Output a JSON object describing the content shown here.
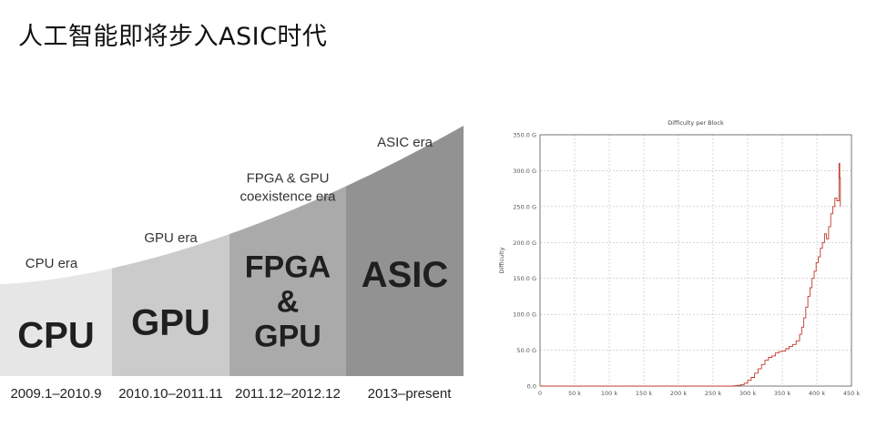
{
  "slide": {
    "title": "人工智能即将步入ASIC时代"
  },
  "eras": [
    {
      "name": "CPU era",
      "block": [
        "CPU"
      ],
      "dates": "2009.1–2010.9",
      "color": "#e6e6e6"
    },
    {
      "name": "GPU era",
      "block": [
        "GPU"
      ],
      "dates": "2010.10–2011.11",
      "color": "#cbcbcb"
    },
    {
      "name": [
        "FPGA & GPU",
        "coexistence era"
      ],
      "block": [
        "FPGA",
        "&",
        "GPU"
      ],
      "dates": "2011.12–2012.12",
      "color": "#aaaaaa"
    },
    {
      "name": "ASIC era",
      "block": [
        "ASIC"
      ],
      "dates": "2013–present",
      "color": "#929292"
    }
  ],
  "chart_data": {
    "type": "line",
    "title": "Difficulty per Block",
    "xlabel": "",
    "ylabel": "Difficulty",
    "xlim": [
      0,
      450
    ],
    "ylim": [
      0,
      350
    ],
    "x_ticks": [
      "0",
      "50 k",
      "100 k",
      "150 k",
      "200 k",
      "250 k",
      "300 k",
      "350 k",
      "400 k",
      "450 k"
    ],
    "y_ticks": [
      "0.0",
      "50.0 G",
      "100.0 G",
      "150.0 G",
      "200.0 G",
      "250.0 G",
      "300.0 G",
      "350.0 G"
    ],
    "grid": true,
    "line_color": "#c0392b",
    "series": [
      {
        "x": [
          0,
          270,
          280,
          285,
          290,
          295,
          300,
          305,
          310,
          315,
          320,
          325,
          330,
          335,
          340,
          345,
          350,
          355,
          360,
          365,
          370,
          375,
          378,
          381,
          384,
          387,
          390,
          393,
          396,
          399,
          402,
          405,
          408,
          411,
          414,
          417,
          420,
          423,
          426,
          429,
          432,
          433,
          434
        ],
        "y": [
          0,
          0,
          0.5,
          1,
          2,
          4,
          8,
          12,
          18,
          24,
          30,
          36,
          40,
          42,
          46,
          48,
          49,
          52,
          55,
          58,
          63,
          72,
          82,
          95,
          110,
          125,
          137,
          150,
          160,
          172,
          180,
          192,
          200,
          212,
          205,
          222,
          240,
          250,
          262,
          258,
          310,
          290,
          250
        ]
      }
    ]
  }
}
